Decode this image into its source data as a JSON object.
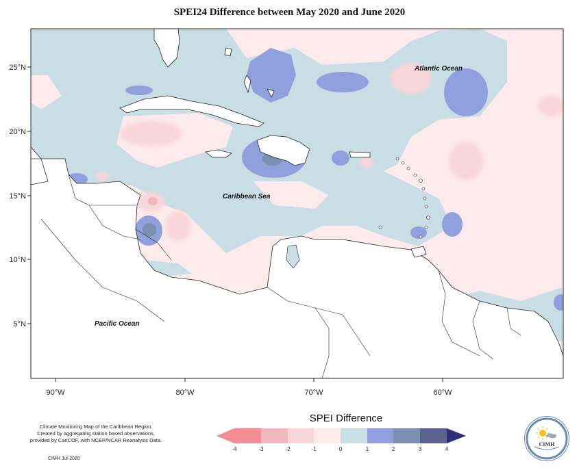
{
  "title": "SPEI24 Difference between May 2020 and June 2020",
  "labels": {
    "atlantic": "Atlantic Ocean",
    "caribbean": "Caribbean Sea",
    "pacific": "Pacific Ocean"
  },
  "lon_ticks": [
    "90°W",
    "80°W",
    "70°W",
    "60°W"
  ],
  "lat_ticks": [
    "25°N",
    "20°N",
    "15°N",
    "10°N",
    "5°N"
  ],
  "legend": {
    "title": "SPEI Difference",
    "ticks": [
      "-4",
      "-3",
      "-2",
      "-1",
      "0",
      "1",
      "2",
      "3",
      "4"
    ],
    "colors": [
      "#f28c93",
      "#efb9bc",
      "#f9d6da",
      "#fceaec",
      "#c9dde4",
      "#8fa0dc",
      "#7b8fb0",
      "#5a6390",
      "#2d2f78"
    ]
  },
  "footer": {
    "line1": "Climate Monitoring Map of the Caribbean Region.",
    "line2": "Created by aggregating station based observations,",
    "line3": "provided by CariCOF, with NCEP/NCAR Reanalysis Data.",
    "credit": "CIMH  Jul-2020"
  },
  "logo": {
    "abbr": "CIMH"
  }
}
